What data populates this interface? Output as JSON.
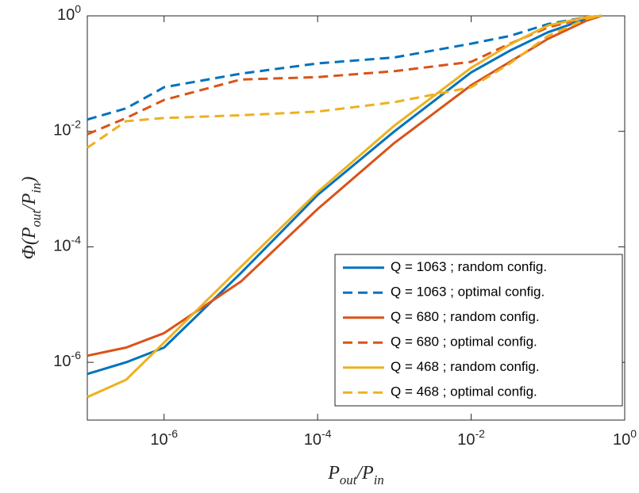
{
  "chart_data": {
    "type": "line",
    "xlabel": "P_out/P_in",
    "ylabel": "Φ(P_out/P_in)",
    "xscale": "log",
    "yscale": "log",
    "xlim": [
      1e-07,
      1
    ],
    "ylim": [
      1e-07,
      1
    ],
    "xticks": [
      {
        "value": 1e-06,
        "label": "10^-6"
      },
      {
        "value": 0.0001,
        "label": "10^-4"
      },
      {
        "value": 0.01,
        "label": "10^-2"
      },
      {
        "value": 1,
        "label": "10^0"
      }
    ],
    "yticks": [
      {
        "value": 1e-06,
        "label": "10^-6"
      },
      {
        "value": 0.0001,
        "label": "10^-4"
      },
      {
        "value": 0.01,
        "label": "10^-2"
      },
      {
        "value": 1,
        "label": "10^0"
      }
    ],
    "legend_position": "lower right",
    "x": [
      1e-07,
      3.2e-07,
      1e-06,
      1e-05,
      0.0001,
      0.001,
      0.01,
      0.032,
      0.1,
      0.32,
      0.5
    ],
    "series": [
      {
        "name": "Q = 1063 ; random config.",
        "color": "#0072BD",
        "dash": false,
        "values": [
          6.3e-07,
          1e-06,
          1.8e-06,
          3.5e-05,
          0.00079,
          0.01,
          0.105,
          0.25,
          0.52,
          0.89,
          1
        ]
      },
      {
        "name": "Q = 1063 ; optimal config.",
        "color": "#0072BD",
        "dash": true,
        "values": [
          0.016,
          0.025,
          0.058,
          0.1,
          0.15,
          0.19,
          0.33,
          0.45,
          0.72,
          0.95,
          1
        ]
      },
      {
        "name": "Q = 680 ; random config.",
        "color": "#D95319",
        "dash": false,
        "values": [
          1.3e-06,
          1.8e-06,
          3.2e-06,
          2.5e-05,
          0.00045,
          0.0063,
          0.063,
          0.16,
          0.4,
          0.83,
          1
        ]
      },
      {
        "name": "Q = 680 ; optimal config.",
        "color": "#D95319",
        "dash": true,
        "values": [
          0.0089,
          0.017,
          0.035,
          0.079,
          0.087,
          0.11,
          0.16,
          0.33,
          0.63,
          0.93,
          1
        ]
      },
      {
        "name": "Q = 468 ; random config.",
        "color": "#EDB120",
        "dash": false,
        "values": [
          2.5e-07,
          5e-07,
          2.2e-06,
          4.5e-05,
          0.00089,
          0.0126,
          0.126,
          0.32,
          0.68,
          0.95,
          1
        ]
      },
      {
        "name": "Q = 468 ; optimal config.",
        "color": "#EDB120",
        "dash": true,
        "values": [
          0.0052,
          0.015,
          0.017,
          0.019,
          0.022,
          0.032,
          0.058,
          0.15,
          0.45,
          0.89,
          1
        ]
      }
    ]
  }
}
